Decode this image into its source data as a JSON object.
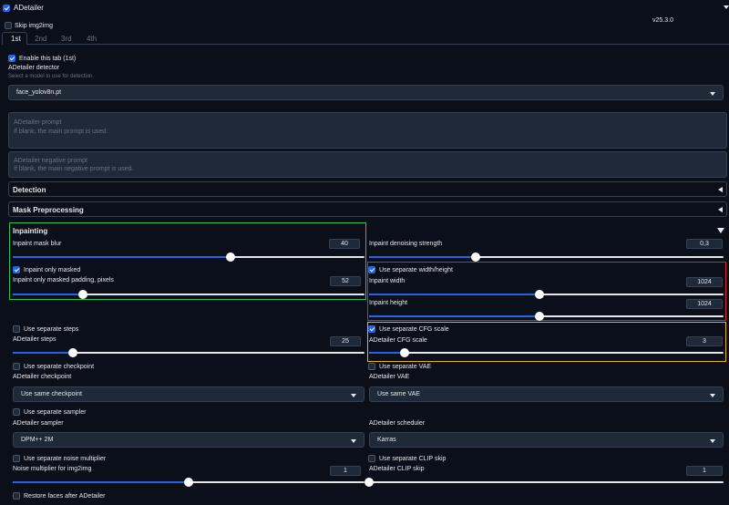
{
  "header": {
    "title": "ADetailer",
    "skip_label": "Skip img2img",
    "version": "v25.3.0"
  },
  "tabs": [
    "1st",
    "2nd",
    "3rd",
    "4th"
  ],
  "enable_tab": "Enable this tab (1st)",
  "detector": {
    "label": "ADetailer detector",
    "hint": "Select a model to use for detection.",
    "value": "face_yolov8n.pt"
  },
  "prompt": {
    "placeholder": "ADetailer prompt",
    "hint": "If blank, the main prompt is used."
  },
  "neg_prompt": {
    "placeholder": "ADetailer negative prompt",
    "hint": "If blank, the main negative prompt is used."
  },
  "sections": {
    "detection": "Detection",
    "mask": "Mask Preprocessing",
    "inpainting": "Inpainting"
  },
  "inpaint": {
    "mask_blur": {
      "label": "Inpaint mask blur",
      "value": "40",
      "fraction": 0.62
    },
    "denoise": {
      "label": "Inpaint denoising strength",
      "value": "0,3",
      "fraction": 0.3
    },
    "only_masked": "Inpaint only masked",
    "padding": {
      "label": "Inpaint only masked padding, pixels",
      "value": "52",
      "fraction": 0.2
    },
    "sep_wh": "Use separate width/height",
    "width": {
      "label": "Inpaint width",
      "value": "1024",
      "fraction": 0.48
    },
    "height": {
      "label": "Inpaint height",
      "value": "1024",
      "fraction": 0.48
    },
    "sep_steps": "Use separate steps",
    "steps": {
      "label": "ADetailer steps",
      "value": "25",
      "fraction": 0.17
    },
    "sep_cfg": "Use separate CFG scale",
    "cfg": {
      "label": "ADetailer CFG scale",
      "value": "3",
      "fraction": 0.1
    },
    "sep_ckpt": "Use separate checkpoint",
    "ckpt": {
      "label": "ADetailer checkpoint",
      "value": "Use same checkpoint"
    },
    "sep_vae": "Use separate VAE",
    "vae": {
      "label": "ADetailer VAE",
      "value": "Use same VAE"
    },
    "sep_sampler": "Use separate sampler",
    "sampler": {
      "label": "ADetailer sampler",
      "value": "DPM++ 2M"
    },
    "scheduler": {
      "label": "ADetailer scheduler",
      "value": "Karras"
    },
    "sep_noise": "Use separate noise multiplier",
    "noise": {
      "label": "Noise multiplier for img2img",
      "value": "1",
      "fraction": 0.5
    },
    "sep_clip": "Use separate CLIP skip",
    "clip": {
      "label": "ADetailer CLIP skip",
      "value": "1",
      "fraction": 0.0
    },
    "restore": "Restore faces after ADetailer"
  },
  "colors": {
    "accent": "#2563eb",
    "green": "#22c55e",
    "red": "#dc2626",
    "yellow": "#eab308"
  }
}
